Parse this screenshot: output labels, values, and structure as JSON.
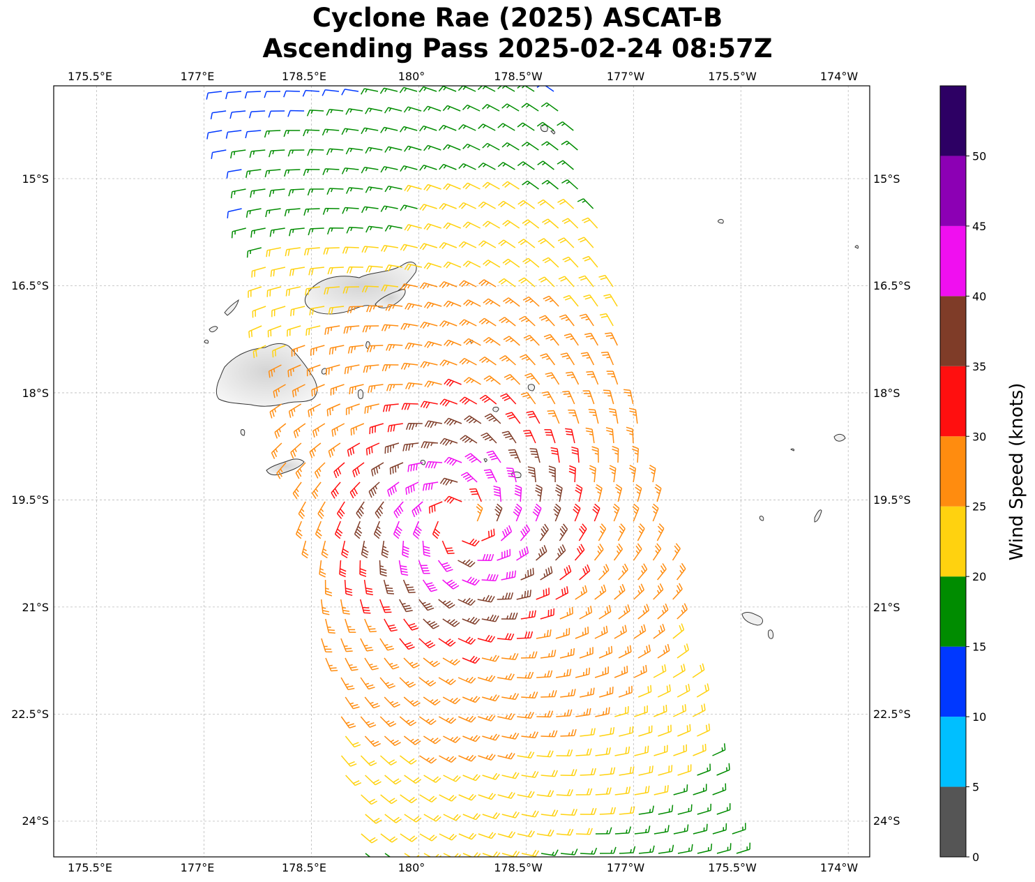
{
  "title": {
    "line1": "Cyclone Rae (2025) ASCAT-B",
    "line2": "Ascending Pass 2025-02-24 08:57Z"
  },
  "map": {
    "lon_ticks": [
      "175.5°E",
      "177°E",
      "178.5°E",
      "180°",
      "178.5°W",
      "177°W",
      "175.5°W",
      "174°W"
    ],
    "lat_ticks": [
      "15°S",
      "16.5°S",
      "18°S",
      "19.5°S",
      "21°S",
      "22.5°S",
      "24°S"
    ],
    "lon_range": [
      174.9,
      186.3
    ],
    "lat_range": [
      -13.7,
      -24.5
    ],
    "storm_center": [
      180.6,
      -19.8
    ],
    "gridlines": true
  },
  "colorbar": {
    "label": "Wind Speed (knots)",
    "ticks": [
      "0",
      "5",
      "10",
      "15",
      "20",
      "25",
      "30",
      "35",
      "40",
      "45",
      "50"
    ],
    "bins": [
      {
        "min": 0,
        "max": 5,
        "color": "#555555"
      },
      {
        "min": 5,
        "max": 10,
        "color": "#00bfff"
      },
      {
        "min": 10,
        "max": 15,
        "color": "#0038ff"
      },
      {
        "min": 15,
        "max": 20,
        "color": "#008c00"
      },
      {
        "min": 20,
        "max": 25,
        "color": "#ffd20f"
      },
      {
        "min": 25,
        "max": 30,
        "color": "#ff8c0f"
      },
      {
        "min": 30,
        "max": 35,
        "color": "#ff0f0f"
      },
      {
        "min": 35,
        "max": 40,
        "color": "#7f3c28"
      },
      {
        "min": 40,
        "max": 45,
        "color": "#f00ff0"
      },
      {
        "min": 45,
        "max": 50,
        "color": "#8c00b4"
      },
      {
        "min": 50,
        "max": 55,
        "color": "#2d0064"
      }
    ]
  },
  "islands": [
    {
      "name": "Vanua Levu"
    },
    {
      "name": "Viti Levu"
    },
    {
      "name": "Kadavu"
    },
    {
      "name": "Tongatapu"
    }
  ]
}
